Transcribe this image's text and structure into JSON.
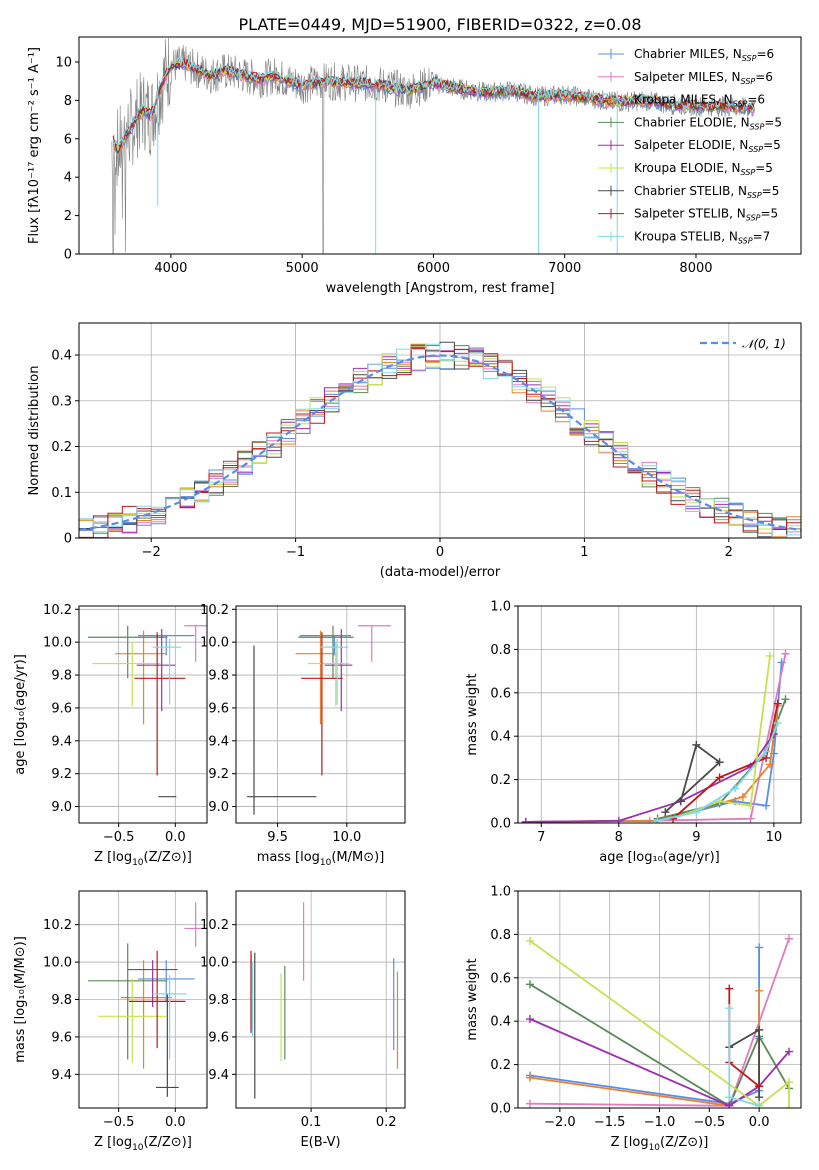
{
  "figure_title": "PLATE=0449, MJD=51900, FIBERID=0322, z=0.08",
  "colors": {
    "chabrier_miles": "#5b8ce8",
    "salpeter_miles": "#e07cc0",
    "kroupa_miles": "#e8822c",
    "chabrier_elodie": "#5a8a5a",
    "salpeter_elodie": "#9b30b0",
    "kroupa_elodie": "#c8e050",
    "chabrier_stelib": "#4a4a4a",
    "salpeter_stelib": "#c01818",
    "kroupa_stelib": "#80d8e8"
  },
  "legend": [
    {
      "prefix": "Chabrier MILES, N",
      "sub": "SSP",
      "suffix": "=6",
      "key": "chabrier_miles"
    },
    {
      "prefix": "Salpeter MILES, N",
      "sub": "SSP",
      "suffix": "=6",
      "key": "salpeter_miles"
    },
    {
      "prefix": "Kroupa MILES, N",
      "sub": "SSP",
      "suffix": "=6",
      "key": "kroupa_miles"
    },
    {
      "prefix": "Chabrier ELODIE, N",
      "sub": "SSP",
      "suffix": "=5",
      "key": "chabrier_elodie"
    },
    {
      "prefix": "Salpeter ELODIE, N",
      "sub": "SSP",
      "suffix": "=5",
      "key": "salpeter_elodie"
    },
    {
      "prefix": "Kroupa ELODIE, N",
      "sub": "SSP",
      "suffix": "=5",
      "key": "kroupa_elodie"
    },
    {
      "prefix": "Chabrier STELIB, N",
      "sub": "SSP",
      "suffix": "=5",
      "key": "chabrier_stelib"
    },
    {
      "prefix": "Salpeter STELIB, N",
      "sub": "SSP",
      "suffix": "=5",
      "key": "salpeter_stelib"
    },
    {
      "prefix": "Kroupa STELIB, N",
      "sub": "SSP",
      "suffix": "=7",
      "key": "kroupa_stelib"
    }
  ],
  "chart_data": [
    {
      "id": "spectrum",
      "type": "line",
      "xlabel": "wavelength [Angstrom, rest frame]",
      "ylabel": "Flux [fλ10⁻¹⁷ erg cm⁻² s⁻¹ A⁻¹]",
      "xlim": [
        3300,
        8800
      ],
      "ylim": [
        0,
        11.3
      ],
      "xticks": [
        4000,
        5000,
        6000,
        7000,
        8000
      ],
      "yticks": [
        0,
        2,
        4,
        6,
        8,
        10
      ],
      "observed": {
        "name": "data",
        "x_start": 3550,
        "x_end": 8450,
        "step": 4,
        "level": 8.5
      },
      "model_x": [
        3560,
        3600,
        3650,
        3700,
        3750,
        3800,
        3850,
        3900,
        3950,
        4000,
        4100,
        4200,
        4300,
        4400,
        4500,
        4600,
        4700,
        4800,
        4900,
        5000,
        5200,
        5400,
        5600,
        5800,
        6000,
        6200,
        6400,
        6600,
        6800,
        7000,
        7200,
        7400,
        7600,
        7800,
        8000,
        8200,
        8400
      ],
      "model_y": [
        5.9,
        5.4,
        6.1,
        6.6,
        7.2,
        7.5,
        7.2,
        8.2,
        9.2,
        9.8,
        9.9,
        9.6,
        9.3,
        9.5,
        9.4,
        9.2,
        9.1,
        9.3,
        9.0,
        8.8,
        9.0,
        8.9,
        8.8,
        8.5,
        8.9,
        8.6,
        8.4,
        8.5,
        8.2,
        8.3,
        8.1,
        7.9,
        8.0,
        7.8,
        7.7,
        7.7,
        7.6
      ]
    },
    {
      "id": "residuals",
      "type": "bar",
      "xlabel": "(data-model)/error",
      "ylabel": "Normed distribution",
      "xlim": [
        -2.5,
        2.5
      ],
      "ylim": [
        0,
        0.47
      ],
      "xticks": [
        -2,
        -1,
        0,
        1,
        2
      ],
      "yticks": [
        0.0,
        0.1,
        0.2,
        0.3,
        0.4
      ],
      "reference": {
        "name": "𝒩(0, 1)",
        "mean": 0,
        "sigma": 1
      },
      "bin_width": 0.1
    },
    {
      "id": "z_age",
      "type": "scatter",
      "xlabel_main": "Z [log",
      "xlabel_sub": "10",
      "xlabel_rest": "(Z/Z⊙)]",
      "ylabel": "age  [log₁₀(age/yr)]",
      "xlim": [
        -0.85,
        0.28
      ],
      "ylim": [
        8.9,
        10.22
      ],
      "xticks": [
        -0.5,
        0.0
      ],
      "yticks": [
        9.0,
        9.2,
        9.4,
        9.6,
        9.8,
        10.0,
        10.2
      ],
      "points": [
        {
          "key": "chabrier_miles",
          "x": -0.08,
          "y": 10.04,
          "xerr": [
            0.25,
            0.25
          ],
          "yerr": [
            0.12,
            0.0
          ]
        },
        {
          "key": "salpeter_miles",
          "x": 0.18,
          "y": 10.1,
          "xerr": [
            0.1,
            0.1
          ],
          "yerr": [
            0.22,
            0.0
          ]
        },
        {
          "key": "kroupa_miles",
          "x": -0.28,
          "y": 9.93,
          "xerr": [
            0.25,
            0.2
          ],
          "yerr": [
            0.43,
            0.14
          ]
        },
        {
          "key": "chabrier_elodie",
          "x": -0.42,
          "y": 10.03,
          "xerr": [
            0.35,
            0.35
          ],
          "yerr": [
            0.25,
            0.07
          ]
        },
        {
          "key": "salpeter_elodie",
          "x": -0.12,
          "y": 9.86,
          "xerr": [
            0.22,
            0.12
          ],
          "yerr": [
            0.28,
            0.22
          ]
        },
        {
          "key": "kroupa_elodie",
          "x": -0.38,
          "y": 9.87,
          "xerr": [
            0.35,
            0.25
          ],
          "yerr": [
            0.26,
            0.13
          ]
        },
        {
          "key": "chabrier_stelib",
          "x": -0.07,
          "y": 9.06,
          "xerr": [
            0.08,
            0.08
          ],
          "yerr": [
            0.0,
            0.0
          ]
        },
        {
          "key": "salpeter_stelib",
          "x": -0.16,
          "y": 9.78,
          "xerr": [
            0.2,
            0.25
          ],
          "yerr": [
            0.59,
            0.28
          ]
        },
        {
          "key": "kroupa_stelib",
          "x": -0.05,
          "y": 9.97,
          "xerr": [
            0.15,
            0.1
          ],
          "yerr": [
            0.35,
            0.05
          ]
        }
      ]
    },
    {
      "id": "mass_age",
      "type": "scatter",
      "xlabel_main": "mass [log",
      "xlabel_sub": "10",
      "xlabel_rest": "(M/M⊙)]",
      "ylabel": "",
      "xlim": [
        9.2,
        10.42
      ],
      "ylim": [
        8.9,
        10.22
      ],
      "xticks": [
        9.5,
        10.0
      ],
      "yticks": [
        9.0,
        9.2,
        9.4,
        9.6,
        9.8,
        10.0,
        10.2
      ],
      "points": [
        {
          "key": "chabrier_miles",
          "x": 9.91,
          "y": 10.04,
          "xerr": [
            0.25,
            0.12
          ],
          "yerr": [
            0.12,
            0.0
          ]
        },
        {
          "key": "salpeter_miles",
          "x": 10.18,
          "y": 10.1,
          "xerr": [
            0.1,
            0.14
          ],
          "yerr": [
            0.22,
            0.0
          ]
        },
        {
          "key": "kroupa_miles",
          "x": 9.81,
          "y": 9.93,
          "xerr": [
            0.18,
            0.12
          ],
          "yerr": [
            0.43,
            0.14
          ]
        },
        {
          "key": "chabrier_elodie",
          "x": 9.9,
          "y": 10.03,
          "xerr": [
            0.25,
            0.15
          ],
          "yerr": [
            0.25,
            0.07
          ]
        },
        {
          "key": "salpeter_elodie",
          "x": 9.96,
          "y": 9.86,
          "xerr": [
            0.12,
            0.08
          ],
          "yerr": [
            0.28,
            0.22
          ]
        },
        {
          "key": "kroupa_elodie",
          "x": 9.92,
          "y": 9.87,
          "xerr": [
            0.2,
            0.1
          ],
          "yerr": [
            0.26,
            0.13
          ]
        },
        {
          "key": "chabrier_stelib",
          "x": 9.33,
          "y": 9.06,
          "xerr": [
            0.05,
            0.45
          ],
          "yerr": [
            0.11,
            0.92
          ]
        },
        {
          "key": "salpeter_stelib",
          "x": 9.82,
          "y": 9.78,
          "xerr": [
            0.15,
            0.15
          ],
          "yerr": [
            0.59,
            0.28
          ]
        },
        {
          "key": "kroupa_stelib",
          "x": 9.93,
          "y": 9.97,
          "xerr": [
            0.12,
            0.08
          ],
          "yerr": [
            0.35,
            0.05
          ]
        }
      ]
    },
    {
      "id": "age_weight",
      "type": "line",
      "xlabel": "age  [log₁₀(age/yr)]",
      "ylabel": "mass weight",
      "xlim": [
        6.7,
        10.35
      ],
      "ylim": [
        0,
        1.0
      ],
      "xticks": [
        7,
        8,
        9,
        10
      ],
      "yticks": [
        0.0,
        0.2,
        0.4,
        0.6,
        0.8,
        1.0
      ],
      "series": [
        {
          "key": "chabrier_miles",
          "x": [
            6.8,
            8.5,
            9.5,
            9.9,
            10.0,
            10.1
          ],
          "y": [
            0.005,
            0.01,
            0.1,
            0.08,
            0.32,
            0.74
          ]
        },
        {
          "key": "salpeter_miles",
          "x": [
            6.8,
            8.4,
            9.7,
            10.15
          ],
          "y": [
            0.005,
            0.01,
            0.02,
            0.78
          ]
        },
        {
          "key": "kroupa_miles",
          "x": [
            6.8,
            8.5,
            9.6,
            9.95,
            10.05
          ],
          "y": [
            0.005,
            0.01,
            0.12,
            0.27,
            0.54
          ]
        },
        {
          "key": "chabrier_elodie",
          "x": [
            8.5,
            9.3,
            9.9,
            10.15
          ],
          "y": [
            0.02,
            0.09,
            0.33,
            0.57
          ]
        },
        {
          "key": "salpeter_elodie",
          "x": [
            6.8,
            8.0,
            8.8,
            9.7,
            10.0
          ],
          "y": [
            0.005,
            0.01,
            0.1,
            0.26,
            0.41
          ]
        },
        {
          "key": "kroupa_elodie",
          "x": [
            8.7,
            9.3,
            9.7,
            9.95
          ],
          "y": [
            0.02,
            0.1,
            0.08,
            0.77
          ]
        },
        {
          "key": "chabrier_stelib",
          "x": [
            8.8,
            9.0,
            9.3,
            8.6
          ],
          "y": [
            0.1,
            0.36,
            0.28,
            0.05
          ]
        },
        {
          "key": "salpeter_stelib",
          "x": [
            8.7,
            9.3,
            9.9,
            10.05
          ],
          "y": [
            0.02,
            0.21,
            0.3,
            0.55
          ]
        },
        {
          "key": "kroupa_stelib",
          "x": [
            8.5,
            9.0,
            9.5,
            9.9,
            10.05
          ],
          "y": [
            0.01,
            0.05,
            0.16,
            0.33,
            0.46
          ]
        }
      ]
    },
    {
      "id": "z_mass",
      "type": "scatter",
      "xlabel_main": "Z [log",
      "xlabel_sub": "10",
      "xlabel_rest": "(Z/Z⊙)]",
      "ylabel": "mass [log₁₀(M/M⊙)]",
      "xlim": [
        -0.85,
        0.28
      ],
      "ylim": [
        9.22,
        10.38
      ],
      "xticks": [
        -0.5,
        0.0
      ],
      "yticks": [
        9.4,
        9.6,
        9.8,
        10.0,
        10.2
      ],
      "points": [
        {
          "key": "chabrier_miles",
          "x": -0.08,
          "y": 9.91,
          "xerr": [
            0.25,
            0.25
          ],
          "yerr": [
            0.12,
            0.1
          ]
        },
        {
          "key": "salpeter_miles",
          "x": 0.18,
          "y": 10.18,
          "xerr": [
            0.1,
            0.1
          ],
          "yerr": [
            0.1,
            0.14
          ]
        },
        {
          "key": "kroupa_miles",
          "x": -0.28,
          "y": 9.81,
          "xerr": [
            0.2,
            0.25
          ],
          "yerr": [
            0.38,
            0.2
          ]
        },
        {
          "key": "chabrier_elodie",
          "x": -0.42,
          "y": 9.9,
          "xerr": [
            0.35,
            0.35
          ],
          "yerr": [
            0.42,
            0.2
          ]
        },
        {
          "key": "salpeter_elodie",
          "x": -0.2,
          "y": 9.96,
          "xerr": [
            0.22,
            0.22
          ],
          "yerr": [
            0.2,
            0.05
          ]
        },
        {
          "key": "kroupa_elodie",
          "x": -0.38,
          "y": 9.71,
          "xerr": [
            0.3,
            0.3
          ],
          "yerr": [
            0.25,
            0.2
          ]
        },
        {
          "key": "chabrier_stelib",
          "x": -0.07,
          "y": 9.33,
          "xerr": [
            0.1,
            0.1
          ],
          "yerr": [
            0.05,
            0.5
          ]
        },
        {
          "key": "salpeter_stelib",
          "x": -0.16,
          "y": 9.79,
          "xerr": [
            0.25,
            0.25
          ],
          "yerr": [
            0.25,
            0.27
          ]
        },
        {
          "key": "kroupa_stelib",
          "x": -0.05,
          "y": 9.83,
          "xerr": [
            0.15,
            0.15
          ],
          "yerr": [
            0.35,
            0.1
          ]
        }
      ]
    },
    {
      "id": "ebv_mass",
      "type": "scatter",
      "xlabel": "E(B-V)",
      "ylabel": "",
      "xlim": [
        0.0,
        0.225
      ],
      "ylim": [
        9.22,
        10.38
      ],
      "xticks": [
        0.1,
        0.2
      ],
      "yticks": [
        9.4,
        9.6,
        9.8,
        10.0,
        10.2
      ],
      "points": [
        {
          "key": "chabrier_miles",
          "x": 0.21,
          "y": 9.78,
          "yerr": [
            0.25,
            0.24
          ]
        },
        {
          "key": "salpeter_miles",
          "x": 0.09,
          "y": 10.1,
          "yerr": [
            0.2,
            0.22
          ]
        },
        {
          "key": "kroupa_miles",
          "x": 0.215,
          "y": 9.7,
          "yerr": [
            0.27,
            0.25
          ]
        },
        {
          "key": "chabrier_elodie",
          "x": 0.065,
          "y": 9.73,
          "yerr": [
            0.25,
            0.25
          ]
        },
        {
          "key": "salpeter_elodie",
          "x": 0.02,
          "y": 9.82,
          "yerr": [
            0.2,
            0.22
          ]
        },
        {
          "key": "kroupa_elodie",
          "x": 0.06,
          "y": 9.72,
          "yerr": [
            0.25,
            0.22
          ]
        },
        {
          "key": "chabrier_stelib",
          "x": 0.025,
          "y": 9.65,
          "yerr": [
            0.38,
            0.4
          ]
        },
        {
          "key": "salpeter_stelib",
          "x": 0.02,
          "y": 9.83,
          "yerr": [
            0.2,
            0.23
          ]
        },
        {
          "key": "kroupa_stelib",
          "x": 0.022,
          "y": 9.8,
          "yerr": [
            0.2,
            0.2
          ]
        }
      ]
    },
    {
      "id": "z_weight",
      "type": "line",
      "xlabel_main": "Z [log",
      "xlabel_sub": "10",
      "xlabel_rest": "(Z/Z⊙)]",
      "ylabel": "mass weight",
      "xlim": [
        -2.42,
        0.42
      ],
      "ylim": [
        0,
        1.0
      ],
      "xticks": [
        -2.0,
        -1.5,
        -1.0,
        -0.5,
        0.0
      ],
      "yticks": [
        0.0,
        0.2,
        0.4,
        0.6,
        0.8,
        1.0
      ],
      "series": [
        {
          "key": "chabrier_miles",
          "x": [
            -2.3,
            -0.3,
            0.0,
            0.0,
            0.0
          ],
          "y": [
            0.15,
            0.02,
            0.08,
            0.32,
            0.74
          ]
        },
        {
          "key": "salpeter_miles",
          "x": [
            -2.3,
            -0.3,
            0.3
          ],
          "y": [
            0.02,
            0.01,
            0.78
          ]
        },
        {
          "key": "kroupa_miles",
          "x": [
            -2.3,
            -0.3,
            0.0,
            0.0
          ],
          "y": [
            0.14,
            0.01,
            0.1,
            0.54
          ]
        },
        {
          "key": "chabrier_elodie",
          "x": [
            -2.3,
            -0.3,
            0.0,
            0.3
          ],
          "y": [
            0.57,
            0.01,
            0.33,
            0.09
          ]
        },
        {
          "key": "salpeter_elodie",
          "x": [
            -2.3,
            -0.3,
            0.0,
            0.3
          ],
          "y": [
            0.41,
            0.01,
            0.1,
            0.26
          ]
        },
        {
          "key": "kroupa_elodie",
          "x": [
            -2.3,
            0.0,
            0.3,
            0.3
          ],
          "y": [
            0.77,
            0.01,
            0.12,
            0.0
          ]
        },
        {
          "key": "chabrier_stelib",
          "x": [
            -0.3,
            0.0,
            0.0
          ],
          "y": [
            0.28,
            0.36,
            0.05
          ]
        },
        {
          "key": "salpeter_stelib",
          "x": [
            -0.3,
            -0.3,
            0.0
          ],
          "y": [
            0.55,
            0.21,
            0.1
          ]
        },
        {
          "key": "kroupa_stelib",
          "x": [
            -0.3,
            -0.3,
            0.0
          ],
          "y": [
            0.46,
            0.05,
            0.01
          ]
        }
      ]
    }
  ]
}
